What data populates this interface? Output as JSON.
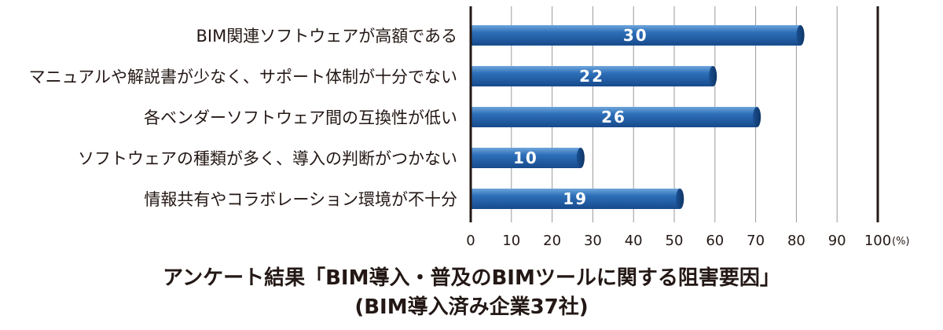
{
  "chart_data": {
    "type": "bar",
    "orientation": "horizontal",
    "categories": [
      "BIM関連ソフトウェアが高額である",
      "マニュアルや解説書が少なく、サポート体制が十分でない",
      "各ベンダーソフトウェア間の互換性が低い",
      "ソフトウェアの種類が多く、導入の判断がつかない",
      "情報共有やコラボレーション環境が不十分"
    ],
    "series": [
      {
        "values": [
          30,
          22,
          26,
          10,
          19
        ],
        "percent": [
          81,
          59.5,
          70.3,
          27,
          51.4
        ],
        "color": "#1f5fa8"
      }
    ],
    "xlim": [
      0,
      100
    ],
    "xticks": [
      0,
      10,
      20,
      30,
      40,
      50,
      60,
      70,
      80,
      90,
      100
    ],
    "unit": "(%)",
    "grid": true,
    "title": "アンケート結果「BIM導入・普及のBIMツールに関する阻害要因」",
    "subtitle": "(BIM導入済み企業37社)"
  }
}
